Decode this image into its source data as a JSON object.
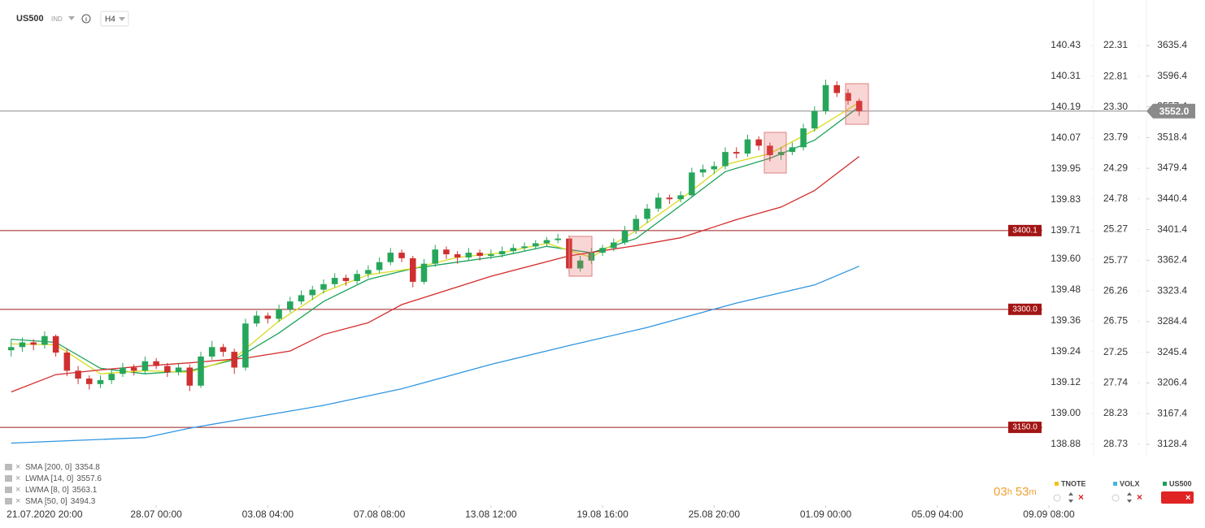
{
  "header": {
    "symbol": "US500",
    "market": "IND",
    "timeframe": "H4"
  },
  "chart_data": {
    "type": "candlestick",
    "up_color": "#26a65b",
    "down_color": "#cf2f2f",
    "x": [
      -3,
      -2,
      -1,
      0,
      1,
      2,
      3,
      4,
      5,
      6,
      7,
      8,
      9,
      10,
      11,
      12,
      13,
      14,
      15,
      16,
      17,
      18,
      19,
      20,
      21,
      22,
      23,
      24,
      25,
      26,
      27,
      28,
      29,
      30,
      31,
      32,
      33,
      34,
      35,
      36,
      37,
      38,
      39,
      40,
      41,
      42,
      43,
      44,
      45,
      46,
      47,
      48,
      49,
      50,
      51,
      52,
      53,
      54,
      55,
      56,
      57,
      58,
      59,
      60,
      61,
      62,
      63,
      64,
      65,
      66,
      67,
      68,
      69,
      70,
      71,
      72,
      73
    ],
    "open": [
      3248,
      3252,
      3258,
      3255,
      3266,
      3245,
      3222,
      3212,
      3205,
      3210,
      3218,
      3226,
      3222,
      3234,
      3228,
      3220,
      3226,
      3203,
      3240,
      3252,
      3246,
      3226,
      3282,
      3292,
      3288,
      3300,
      3310,
      3318,
      3325,
      3332,
      3340,
      3336,
      3345,
      3350,
      3360,
      3372,
      3365,
      3335,
      3358,
      3376,
      3370,
      3366,
      3372,
      3368,
      3370,
      3374,
      3378,
      3380,
      3384,
      3388,
      3390,
      3352,
      3362,
      3372,
      3378,
      3385,
      3400,
      3415,
      3428,
      3442,
      3440,
      3445,
      3474,
      3478,
      3482,
      3500,
      3498,
      3516,
      3508,
      3496,
      3500,
      3506,
      3530,
      3552,
      3585,
      3575,
      3565
    ],
    "high": [
      3262,
      3264,
      3262,
      3272,
      3268,
      3250,
      3228,
      3216,
      3216,
      3224,
      3232,
      3230,
      3240,
      3238,
      3232,
      3232,
      3230,
      3246,
      3260,
      3256,
      3250,
      3288,
      3298,
      3296,
      3306,
      3316,
      3324,
      3330,
      3338,
      3346,
      3344,
      3350,
      3356,
      3366,
      3378,
      3376,
      3368,
      3364,
      3382,
      3380,
      3374,
      3378,
      3376,
      3376,
      3380,
      3383,
      3385,
      3388,
      3392,
      3396,
      3394,
      3368,
      3378,
      3382,
      3390,
      3406,
      3420,
      3434,
      3448,
      3446,
      3450,
      3480,
      3484,
      3488,
      3506,
      3506,
      3522,
      3520,
      3512,
      3506,
      3512,
      3536,
      3558,
      3592,
      3590,
      3580,
      3568
    ],
    "low": [
      3240,
      3246,
      3248,
      3250,
      3240,
      3215,
      3205,
      3198,
      3200,
      3205,
      3214,
      3216,
      3218,
      3224,
      3214,
      3216,
      3196,
      3200,
      3236,
      3240,
      3218,
      3222,
      3278,
      3282,
      3284,
      3296,
      3306,
      3312,
      3320,
      3328,
      3330,
      3332,
      3340,
      3346,
      3356,
      3360,
      3328,
      3332,
      3354,
      3364,
      3358,
      3362,
      3362,
      3364,
      3366,
      3370,
      3374,
      3376,
      3380,
      3384,
      3346,
      3348,
      3358,
      3368,
      3374,
      3382,
      3396,
      3410,
      3424,
      3434,
      3436,
      3442,
      3468,
      3472,
      3478,
      3492,
      3494,
      3502,
      3488,
      3490,
      3496,
      3502,
      3526,
      3548,
      3570,
      3560,
      3546
    ],
    "close": [
      3252,
      3258,
      3255,
      3266,
      3245,
      3222,
      3212,
      3205,
      3210,
      3218,
      3226,
      3222,
      3234,
      3228,
      3220,
      3226,
      3203,
      3240,
      3252,
      3246,
      3226,
      3282,
      3292,
      3288,
      3300,
      3310,
      3318,
      3325,
      3332,
      3340,
      3336,
      3345,
      3350,
      3360,
      3372,
      3365,
      3335,
      3358,
      3376,
      3370,
      3366,
      3372,
      3368,
      3370,
      3374,
      3378,
      3380,
      3384,
      3388,
      3390,
      3352,
      3362,
      3372,
      3378,
      3385,
      3400,
      3415,
      3428,
      3442,
      3440,
      3445,
      3474,
      3478,
      3482,
      3500,
      3498,
      3516,
      3508,
      3496,
      3500,
      3506,
      3530,
      3552,
      3585,
      3575,
      3565,
      3552
    ],
    "xlim": [
      -4,
      90
    ],
    "xticks": [
      {
        "value": 0,
        "label": "21.07.2020 20:00"
      },
      {
        "value": 10,
        "label": "28.07 00:00"
      },
      {
        "value": 20,
        "label": "03.08 04:00"
      },
      {
        "value": 30,
        "label": "07.08 08:00"
      },
      {
        "value": 40,
        "label": "13.08 12:00"
      },
      {
        "value": 50,
        "label": "19.08 16:00"
      },
      {
        "value": 60,
        "label": "25.08 20:00"
      },
      {
        "value": 70,
        "label": "01.09 00:00"
      },
      {
        "value": 80,
        "label": "05.09 04:00"
      },
      {
        "value": 90,
        "label": "09.09 08:00"
      }
    ],
    "ylim": [
      3128.4,
      3635.4
    ],
    "yticks": [
      3635.4,
      3596.4,
      3557.4,
      3518.4,
      3479.4,
      3440.4,
      3401.4,
      3362.4,
      3323.4,
      3284.4,
      3245.4,
      3206.4,
      3167.4,
      3128.4
    ],
    "extra_axes": [
      {
        "name": "TNOTE",
        "color": "#f2c21b",
        "ylim": [
          138.88,
          140.43
        ],
        "ticks": [
          140.43,
          140.31,
          140.19,
          140.07,
          139.95,
          139.83,
          139.71,
          {
            "value": 139.6,
            "label": "139.60"
          },
          139.48,
          139.36,
          139.24,
          139.12,
          {
            "value": 139,
            "label": "139.00"
          },
          138.88
        ]
      },
      {
        "name": "VOLX",
        "color": "#46b6e0",
        "ylim": [
          28.73,
          22.31
        ],
        "ticks": [
          22.31,
          22.81,
          {
            "value": 23.3,
            "label": "23.30"
          },
          23.79,
          24.29,
          24.78,
          25.27,
          25.77,
          26.26,
          26.75,
          27.25,
          27.74,
          28.23,
          28.73
        ]
      }
    ],
    "main_tab": {
      "name": "US500",
      "color": "#1f9e5a"
    },
    "lines": [
      {
        "name": "SMA [200,  0]",
        "color": "#2f95e0",
        "legend_value": 3354.8,
        "x": [
          -3,
          9,
          13,
          18,
          25,
          32,
          40,
          47,
          54,
          62,
          69,
          73
        ],
        "values": [
          3130,
          3137,
          3149,
          3161,
          3178,
          3199,
          3230,
          3254,
          3277,
          3308,
          3331,
          3354.8
        ]
      },
      {
        "name": "LWMA [14,  0]",
        "color": "#1aa35a",
        "legend_value": 3557.6,
        "x": [
          -3,
          1,
          5,
          9,
          13,
          17,
          21,
          25,
          29,
          33,
          37,
          41,
          45,
          49,
          53,
          57,
          61,
          65,
          69,
          73
        ],
        "values": [
          3262,
          3258,
          3225,
          3218,
          3222,
          3236,
          3270,
          3310,
          3338,
          3352,
          3360,
          3368,
          3380,
          3372,
          3390,
          3432,
          3475,
          3492,
          3515,
          3557.6
        ]
      },
      {
        "name": "LWMA [8,  0]",
        "color": "#d8dc1e",
        "legend_value": 3563.1,
        "x": [
          -3,
          1,
          5,
          9,
          13,
          17,
          21,
          25,
          29,
          33,
          37,
          41,
          45,
          49,
          53,
          57,
          61,
          65,
          69,
          73
        ],
        "values": [
          3256,
          3255,
          3218,
          3222,
          3220,
          3238,
          3285,
          3322,
          3344,
          3352,
          3366,
          3372,
          3384,
          3366,
          3400,
          3440,
          3484,
          3498,
          3528,
          3563.1
        ]
      },
      {
        "name": "SMA [50,  0]",
        "color": "#d42a2a",
        "legend_value": 3494.3,
        "x": [
          -3,
          1,
          5,
          9,
          13,
          18,
          22,
          25,
          29,
          32,
          40,
          47,
          53,
          57,
          62,
          66,
          69,
          73
        ],
        "values": [
          3195,
          3217,
          3223,
          3228,
          3232,
          3238,
          3247,
          3268,
          3283,
          3306,
          3342,
          3368,
          3381,
          3391,
          3414,
          3430,
          3451,
          3494.3
        ]
      }
    ],
    "levels": [
      3400.1,
      {
        "value": 3300,
        "label": "3300.0"
      },
      {
        "value": 3150,
        "label": "3150.0"
      }
    ],
    "last_price": {
      "value": 3552,
      "label": "3552.0"
    }
  },
  "countdown": {
    "hours": "03",
    "hours_unit": "h",
    "minutes": "53",
    "minutes_unit": "m"
  }
}
